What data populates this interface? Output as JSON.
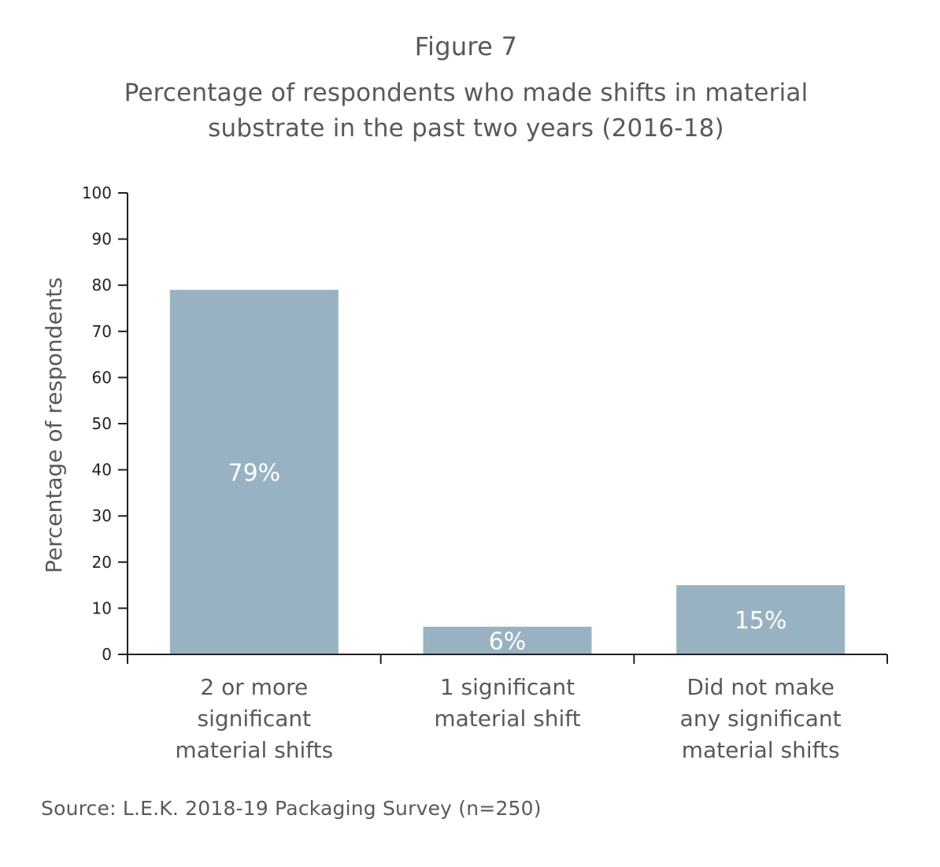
{
  "figure": {
    "label": "Figure 7",
    "source": "Source: L.E.K. 2018-19 Packaging Survey (n=250)"
  },
  "chart_data": {
    "type": "bar",
    "title": "Percentage of respondents who made shifts in material substrate in the past two years (2016-18)",
    "xlabel": "",
    "ylabel": "Percentage of respondents",
    "ylim": [
      0,
      100
    ],
    "yticks": [
      "0",
      "10",
      "20",
      "30",
      "40",
      "50",
      "60",
      "70",
      "80",
      "90",
      "100"
    ],
    "grid": false,
    "legend": "none",
    "bar_color": "#98b2c2",
    "categories": [
      [
        "2 or more",
        "significant",
        "material shifts"
      ],
      [
        "1 significant",
        "material shift"
      ],
      [
        "Did not make",
        "any significant",
        "material shifts"
      ]
    ],
    "values": [
      79,
      6,
      15
    ],
    "data_labels": [
      "79%",
      "6%",
      "15%"
    ]
  }
}
